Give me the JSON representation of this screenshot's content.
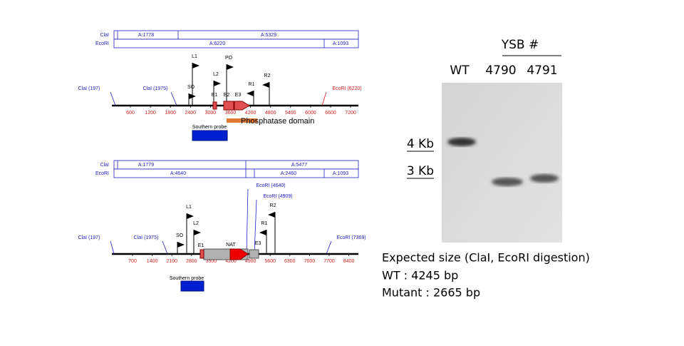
{
  "top_map": {
    "rows": [
      {
        "enzyme": "ClaI",
        "fragments": [
          "A:1778",
          "A:5329"
        ]
      },
      {
        "enzyme": "EcoRI",
        "fragments": [
          "A:6220",
          "A:1093"
        ]
      }
    ],
    "scale": [
      "600",
      "1200",
      "1800",
      "2400",
      "3000",
      "3600",
      "4200",
      "4800",
      "5400",
      "6000",
      "6600",
      "7200"
    ],
    "sites": [
      "ClaI (197)",
      "ClaI (1975)",
      "EcoRI (6220)"
    ],
    "flags": [
      "L1",
      "PO",
      "L2",
      "R2",
      "R1",
      "SO"
    ],
    "exons": [
      "E1",
      "E2",
      "E3"
    ],
    "domain": "Phosphatase domain",
    "probe": "Southern probe"
  },
  "bottom_map": {
    "rows": [
      {
        "enzyme": "ClaI",
        "fragments": [
          "A:1779",
          "A:5477"
        ]
      },
      {
        "enzyme": "EcoRI",
        "fragments": [
          "A:4640",
          "A:2460",
          "A:1093"
        ]
      }
    ],
    "scale": [
      "700",
      "1400",
      "2100",
      "2800",
      "3500",
      "4200",
      "4900",
      "5600",
      "6300",
      "7000",
      "7700",
      "8400"
    ],
    "sites": [
      "ClaI (197)",
      "ClaI (1975)",
      "EcoRI (4640)",
      "EcoRI (4909)",
      "EcoRI (7369)"
    ],
    "flags": [
      "L1",
      "L2",
      "SO",
      "R2",
      "R1"
    ],
    "exons": [
      "E1",
      "E3"
    ],
    "marker": "NAT",
    "probe": "Southern probe"
  },
  "gel": {
    "group": "YSB #",
    "lanes": [
      "WT",
      "4790",
      "4791"
    ],
    "markers": [
      "4 Kb",
      "3 Kb"
    ]
  },
  "notes": [
    "Expected size (ClaI, EcoRI digestion)",
    "WT : 4245 bp",
    "Mutant : 2665 bp"
  ]
}
